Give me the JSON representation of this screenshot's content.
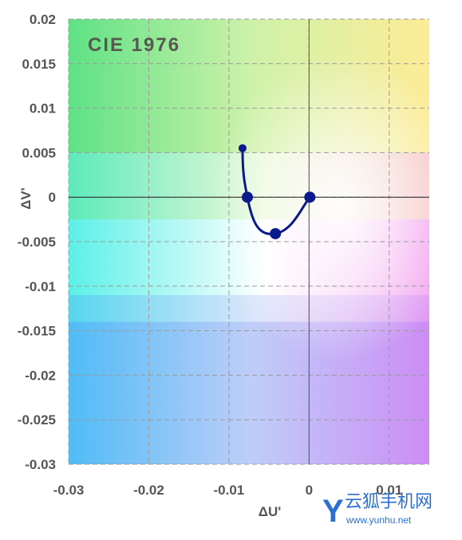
{
  "chart_data": {
    "type": "line",
    "title": "CIE 1976",
    "xlabel": "ΔU'",
    "ylabel": "ΔV'",
    "xlim": [
      -0.03,
      0.015
    ],
    "ylim": [
      -0.03,
      0.02
    ],
    "x_ticks": [
      "-0.03",
      "-0.02",
      "-0.01",
      "0",
      "0.01"
    ],
    "y_ticks": [
      "0.02",
      "0.015",
      "0.01",
      "0.005",
      "0",
      "-0.005",
      "-0.01",
      "-0.015",
      "-0.02",
      "-0.025",
      "-0.03"
    ],
    "grid": true,
    "series": [
      {
        "color": "#0a1a8c",
        "points": [
          {
            "x": -0.0083,
            "y": 0.0055,
            "marker": "small"
          },
          {
            "x": -0.0077,
            "y": 0.0,
            "marker": "large"
          },
          {
            "x": -0.0042,
            "y": -0.0041,
            "marker": "large"
          },
          {
            "x": 0.0001,
            "y": 0.0,
            "marker": "large"
          }
        ]
      }
    ]
  },
  "watermark": {
    "logo_letter": "Y",
    "name": "云狐手机网",
    "url": "www.yunhu.net"
  }
}
